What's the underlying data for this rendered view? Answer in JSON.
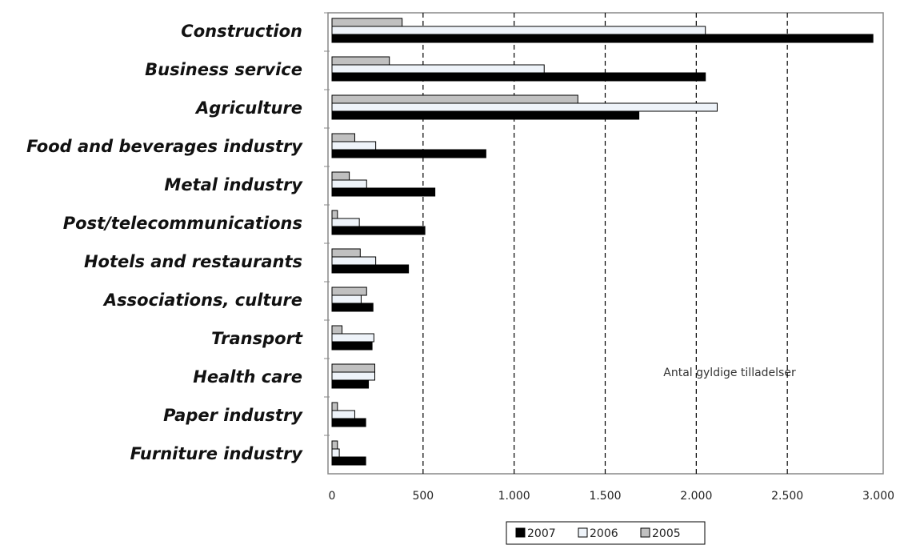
{
  "chart_data": {
    "type": "hbar",
    "annotation": "Antal gyldige tilladelser",
    "categories": [
      "Construction",
      "Business service",
      "Agriculture",
      "Food and beverages industry",
      "Metal industry",
      "Post/telecommunications",
      "Hotels and restaurants",
      "Associations, culture",
      "Transport",
      "Health care",
      "Paper industry",
      "Furniture industry"
    ],
    "series": [
      {
        "name": "2007",
        "color": "#000000",
        "values": [
          2970,
          2050,
          1685,
          845,
          565,
          510,
          420,
          225,
          220,
          200,
          185,
          185
        ]
      },
      {
        "name": "2006",
        "color": "#eef3f9",
        "values": [
          2050,
          1165,
          2115,
          240,
          190,
          150,
          240,
          160,
          230,
          235,
          125,
          40
        ]
      },
      {
        "name": "2005",
        "color": "#c0c0c0",
        "values": [
          385,
          315,
          1350,
          125,
          95,
          30,
          155,
          190,
          55,
          235,
          30,
          30
        ]
      }
    ],
    "xlim": [
      0,
      3000
    ],
    "xticks": [
      0,
      500,
      {
        "value": 1000,
        "label": "1.000"
      },
      {
        "value": 1500,
        "label": "1.500"
      },
      {
        "value": 2000,
        "label": "2.000"
      },
      {
        "value": 2500,
        "label": "2.500"
      },
      {
        "value": 3000,
        "label": "3.000"
      }
    ],
    "grid": true
  }
}
